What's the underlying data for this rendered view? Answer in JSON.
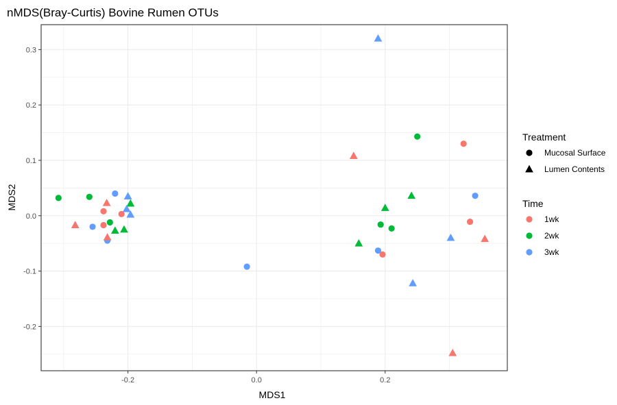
{
  "chart_data": {
    "type": "scatter",
    "title": "nMDS(Bray-Curtis) Bovine Rumen OTUs",
    "xlabel": "MDS1",
    "ylabel": "MDS2",
    "xlim": [
      -0.335,
      0.39
    ],
    "ylim": [
      -0.28,
      0.345
    ],
    "x_ticks": [
      -0.2,
      0.0,
      0.2
    ],
    "x_tick_labels": [
      "-0.2",
      "0.0",
      "0.2"
    ],
    "y_ticks": [
      -0.2,
      -0.1,
      0.0,
      0.1,
      0.2,
      0.3
    ],
    "y_tick_labels": [
      "-0.2",
      "-0.1",
      "0.0",
      "0.1",
      "0.2",
      "0.3"
    ],
    "grid": true,
    "legend_position": "right",
    "legends": [
      {
        "title": "Treatment",
        "items": [
          {
            "label": "Mucosal Surface",
            "shape": "circle"
          },
          {
            "label": "Lumen Contents",
            "shape": "triangle"
          }
        ]
      },
      {
        "title": "Time",
        "items": [
          {
            "label": "1wk",
            "color": "#F8766D"
          },
          {
            "label": "2wk",
            "color": "#00BA38"
          },
          {
            "label": "3wk",
            "color": "#619CFF"
          }
        ]
      }
    ],
    "colors": {
      "1wk": "#F8766D",
      "2wk": "#00BA38",
      "3wk": "#619CFF"
    },
    "points": [
      {
        "x": -0.308,
        "y": 0.032,
        "treatment": "Mucosal Surface",
        "time": "2wk"
      },
      {
        "x": -0.26,
        "y": 0.034,
        "treatment": "Mucosal Surface",
        "time": "2wk"
      },
      {
        "x": -0.228,
        "y": -0.012,
        "treatment": "Mucosal Surface",
        "time": "2wk"
      },
      {
        "x": -0.238,
        "y": 0.008,
        "treatment": "Mucosal Surface",
        "time": "1wk"
      },
      {
        "x": -0.238,
        "y": -0.017,
        "treatment": "Mucosal Surface",
        "time": "1wk"
      },
      {
        "x": -0.21,
        "y": 0.003,
        "treatment": "Mucosal Surface",
        "time": "1wk"
      },
      {
        "x": -0.22,
        "y": 0.04,
        "treatment": "Mucosal Surface",
        "time": "3wk"
      },
      {
        "x": -0.255,
        "y": -0.02,
        "treatment": "Mucosal Surface",
        "time": "3wk"
      },
      {
        "x": -0.232,
        "y": -0.045,
        "treatment": "Mucosal Surface",
        "time": "3wk"
      },
      {
        "x": -0.015,
        "y": -0.092,
        "treatment": "Mucosal Surface",
        "time": "3wk"
      },
      {
        "x": 0.25,
        "y": 0.143,
        "treatment": "Mucosal Surface",
        "time": "2wk"
      },
      {
        "x": 0.193,
        "y": -0.016,
        "treatment": "Mucosal Surface",
        "time": "2wk"
      },
      {
        "x": 0.21,
        "y": -0.023,
        "treatment": "Mucosal Surface",
        "time": "2wk"
      },
      {
        "x": 0.322,
        "y": 0.13,
        "treatment": "Mucosal Surface",
        "time": "1wk"
      },
      {
        "x": 0.332,
        "y": -0.011,
        "treatment": "Mucosal Surface",
        "time": "1wk"
      },
      {
        "x": 0.196,
        "y": -0.07,
        "treatment": "Mucosal Surface",
        "time": "1wk"
      },
      {
        "x": 0.34,
        "y": 0.036,
        "treatment": "Mucosal Surface",
        "time": "3wk"
      },
      {
        "x": 0.189,
        "y": -0.063,
        "treatment": "Mucosal Surface",
        "time": "3wk"
      },
      {
        "x": -0.233,
        "y": 0.023,
        "treatment": "Lumen Contents",
        "time": "1wk"
      },
      {
        "x": -0.282,
        "y": -0.017,
        "treatment": "Lumen Contents",
        "time": "1wk"
      },
      {
        "x": -0.232,
        "y": -0.039,
        "treatment": "Lumen Contents",
        "time": "1wk"
      },
      {
        "x": -0.196,
        "y": 0.022,
        "treatment": "Lumen Contents",
        "time": "2wk"
      },
      {
        "x": -0.22,
        "y": -0.027,
        "treatment": "Lumen Contents",
        "time": "2wk"
      },
      {
        "x": -0.206,
        "y": -0.025,
        "treatment": "Lumen Contents",
        "time": "2wk"
      },
      {
        "x": -0.2,
        "y": 0.035,
        "treatment": "Lumen Contents",
        "time": "3wk"
      },
      {
        "x": -0.202,
        "y": 0.012,
        "treatment": "Lumen Contents",
        "time": "3wk"
      },
      {
        "x": -0.196,
        "y": 0.002,
        "treatment": "Lumen Contents",
        "time": "3wk"
      },
      {
        "x": 0.189,
        "y": 0.32,
        "treatment": "Lumen Contents",
        "time": "3wk"
      },
      {
        "x": 0.151,
        "y": 0.108,
        "treatment": "Lumen Contents",
        "time": "1wk"
      },
      {
        "x": 0.241,
        "y": 0.036,
        "treatment": "Lumen Contents",
        "time": "2wk"
      },
      {
        "x": 0.2,
        "y": 0.014,
        "treatment": "Lumen Contents",
        "time": "2wk"
      },
      {
        "x": 0.159,
        "y": -0.05,
        "treatment": "Lumen Contents",
        "time": "2wk"
      },
      {
        "x": 0.302,
        "y": -0.04,
        "treatment": "Lumen Contents",
        "time": "3wk"
      },
      {
        "x": 0.243,
        "y": -0.122,
        "treatment": "Lumen Contents",
        "time": "3wk"
      },
      {
        "x": 0.355,
        "y": -0.042,
        "treatment": "Lumen Contents",
        "time": "1wk"
      },
      {
        "x": 0.305,
        "y": -0.248,
        "treatment": "Lumen Contents",
        "time": "1wk"
      }
    ]
  }
}
